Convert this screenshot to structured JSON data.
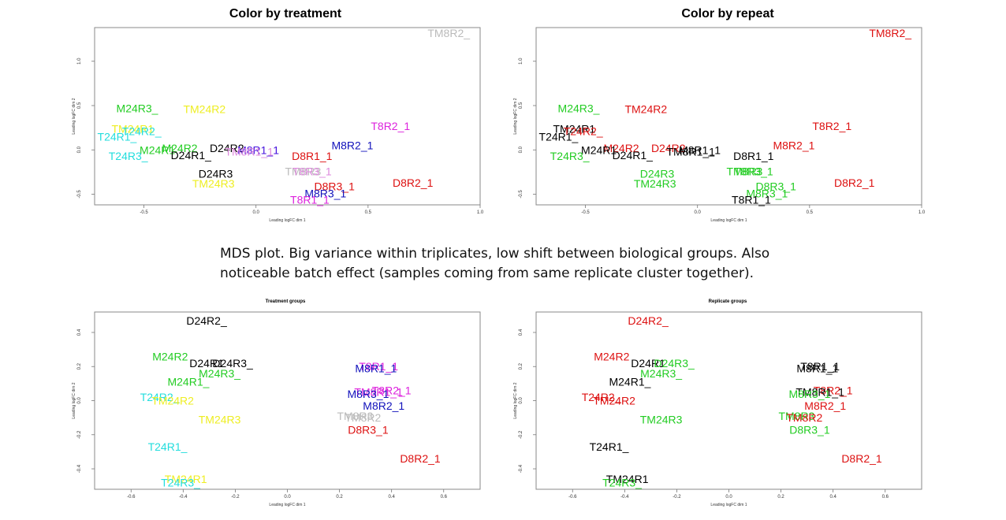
{
  "caption": "MDS plot. Big variance within triplicates, low shift between biological groups. Also noticeable batch effect (samples coming from same replicate cluster together).",
  "colors": {
    "black": "#000000",
    "green": "#22cc22",
    "cyan": "#22dddd",
    "yellow": "#eeee22",
    "gray": "#bbbbbb",
    "red": "#dd1111",
    "magenta": "#dd22dd",
    "blue": "#1111bb",
    "violet": "#4411dd",
    "lightmagenta": "#dd88dd"
  },
  "chart_data": [
    {
      "type": "scatter",
      "title": "Color by treatment",
      "xlabel": "Leading logFC dim 1",
      "ylabel": "Leading logFC dim 2",
      "xlim": [
        -0.72,
        1.0
      ],
      "ylim": [
        -0.62,
        1.38
      ],
      "xticks": [
        "-0.5",
        "0.0",
        "0.5",
        "1.0"
      ],
      "xtick_values": [
        -0.5,
        0.0,
        0.5,
        1.0
      ],
      "yticks": [
        "-0.5",
        "0.0",
        "0.5",
        "1.0"
      ],
      "ytick_values": [
        -0.5,
        0.0,
        0.5,
        1.0
      ],
      "points": [
        {
          "label": "TM8R2_",
          "x": 0.86,
          "y": 1.32,
          "color": "gray"
        },
        {
          "label": "M24R3_",
          "x": -0.53,
          "y": 0.47,
          "color": "green"
        },
        {
          "label": "TM24R2",
          "x": -0.23,
          "y": 0.46,
          "color": "yellow"
        },
        {
          "label": "T8R2_1",
          "x": 0.6,
          "y": 0.27,
          "color": "magenta"
        },
        {
          "label": "TM24R1",
          "x": -0.55,
          "y": 0.24,
          "color": "yellow"
        },
        {
          "label": "T24R2_",
          "x": -0.51,
          "y": 0.21,
          "color": "cyan"
        },
        {
          "label": "T24R1_",
          "x": -0.62,
          "y": 0.15,
          "color": "cyan"
        },
        {
          "label": "M8R2_1",
          "x": 0.43,
          "y": 0.05,
          "color": "blue"
        },
        {
          "label": "D24R2",
          "x": -0.13,
          "y": 0.02,
          "color": "black"
        },
        {
          "label": "M24R2",
          "x": -0.34,
          "y": 0.02,
          "color": "green"
        },
        {
          "label": "M24R1",
          "x": -0.44,
          "y": 0.0,
          "color": "green"
        },
        {
          "label": "M8R1_1",
          "x": 0.01,
          "y": 0.0,
          "color": "violet"
        },
        {
          "label": "TM8R1_1",
          "x": -0.03,
          "y": -0.02,
          "color": "lightmagenta"
        },
        {
          "label": "D8R1_1",
          "x": 0.25,
          "y": -0.07,
          "color": "red"
        },
        {
          "label": "D24R1_",
          "x": -0.29,
          "y": -0.06,
          "color": "black"
        },
        {
          "label": "T24R3_",
          "x": -0.57,
          "y": -0.07,
          "color": "cyan"
        },
        {
          "label": "D24R3",
          "x": -0.18,
          "y": -0.27,
          "color": "black"
        },
        {
          "label": "TM8R3",
          "x": 0.21,
          "y": -0.24,
          "color": "gray"
        },
        {
          "label": "T8R3_1",
          "x": 0.25,
          "y": -0.24,
          "color": "lightmagenta"
        },
        {
          "label": "TM24R3",
          "x": -0.19,
          "y": -0.38,
          "color": "yellow"
        },
        {
          "label": "D8R2_1",
          "x": 0.7,
          "y": -0.37,
          "color": "red"
        },
        {
          "label": "D8R3_1",
          "x": 0.35,
          "y": -0.41,
          "color": "red"
        },
        {
          "label": "M8R3_1",
          "x": 0.31,
          "y": -0.49,
          "color": "blue"
        },
        {
          "label": "T8R1_1",
          "x": 0.24,
          "y": -0.56,
          "color": "magenta"
        }
      ]
    },
    {
      "type": "scatter",
      "title": "Color by repeat",
      "xlabel": "Leading logFC dim 1",
      "ylabel": "Leading logFC dim 2",
      "xlim": [
        -0.72,
        1.0
      ],
      "ylim": [
        -0.62,
        1.38
      ],
      "xticks": [
        "-0.5",
        "0.0",
        "0.5",
        "1.0"
      ],
      "xtick_values": [
        -0.5,
        0.0,
        0.5,
        1.0
      ],
      "yticks": [
        "-0.5",
        "0.0",
        "0.5",
        "1.0"
      ],
      "ytick_values": [
        -0.5,
        0.0,
        0.5,
        1.0
      ],
      "points": [
        {
          "label": "TM8R2_",
          "x": 0.86,
          "y": 1.32,
          "color": "red"
        },
        {
          "label": "M24R3_",
          "x": -0.53,
          "y": 0.47,
          "color": "green"
        },
        {
          "label": "TM24R2",
          "x": -0.23,
          "y": 0.46,
          "color": "red"
        },
        {
          "label": "T8R2_1",
          "x": 0.6,
          "y": 0.27,
          "color": "red"
        },
        {
          "label": "TM24R1",
          "x": -0.55,
          "y": 0.24,
          "color": "black"
        },
        {
          "label": "T24R2_",
          "x": -0.51,
          "y": 0.21,
          "color": "red"
        },
        {
          "label": "T24R1_",
          "x": -0.62,
          "y": 0.15,
          "color": "black"
        },
        {
          "label": "M8R2_1",
          "x": 0.43,
          "y": 0.05,
          "color": "red"
        },
        {
          "label": "D24R2",
          "x": -0.13,
          "y": 0.02,
          "color": "red"
        },
        {
          "label": "M24R2",
          "x": -0.34,
          "y": 0.02,
          "color": "red"
        },
        {
          "label": "M24R1",
          "x": -0.44,
          "y": 0.0,
          "color": "black"
        },
        {
          "label": "M8R1_1",
          "x": 0.01,
          "y": 0.0,
          "color": "black"
        },
        {
          "label": "TM8R1_1",
          "x": -0.03,
          "y": -0.02,
          "color": "black"
        },
        {
          "label": "D8R1_1",
          "x": 0.25,
          "y": -0.07,
          "color": "black"
        },
        {
          "label": "D24R1_",
          "x": -0.29,
          "y": -0.06,
          "color": "black"
        },
        {
          "label": "T24R3_",
          "x": -0.57,
          "y": -0.07,
          "color": "green"
        },
        {
          "label": "D24R3",
          "x": -0.18,
          "y": -0.27,
          "color": "green"
        },
        {
          "label": "TM8R3",
          "x": 0.21,
          "y": -0.24,
          "color": "green"
        },
        {
          "label": "T8R3_1",
          "x": 0.25,
          "y": -0.24,
          "color": "green"
        },
        {
          "label": "TM24R3",
          "x": -0.19,
          "y": -0.38,
          "color": "green"
        },
        {
          "label": "D8R2_1",
          "x": 0.7,
          "y": -0.37,
          "color": "red"
        },
        {
          "label": "D8R3_1",
          "x": 0.35,
          "y": -0.41,
          "color": "green"
        },
        {
          "label": "M8R3_1",
          "x": 0.31,
          "y": -0.49,
          "color": "green"
        },
        {
          "label": "T8R1_1",
          "x": 0.24,
          "y": -0.56,
          "color": "black"
        }
      ]
    },
    {
      "type": "scatter",
      "title": "Treatment groups",
      "xlabel": "Leading logFC dim 1",
      "ylabel": "Leading logFC dim 2",
      "xlim": [
        -0.74,
        0.74
      ],
      "ylim": [
        -0.52,
        0.52
      ],
      "xticks": [
        "-0.6",
        "-0.4",
        "-0.2",
        "0.0",
        "0.2",
        "0.4",
        "0.6"
      ],
      "xtick_values": [
        -0.6,
        -0.4,
        -0.2,
        0.0,
        0.2,
        0.4,
        0.6
      ],
      "yticks": [
        "-0.4",
        "-0.2",
        "0.0",
        "0.2",
        "0.4"
      ],
      "ytick_values": [
        -0.4,
        -0.2,
        0.0,
        0.2,
        0.4
      ],
      "points": [
        {
          "label": "D24R2_",
          "x": -0.31,
          "y": 0.47,
          "color": "black"
        },
        {
          "label": "M24R2",
          "x": -0.45,
          "y": 0.26,
          "color": "green"
        },
        {
          "label": "D24R1",
          "x": -0.31,
          "y": 0.22,
          "color": "black"
        },
        {
          "label": "D24R3_",
          "x": -0.21,
          "y": 0.22,
          "color": "black"
        },
        {
          "label": "M24R3_",
          "x": -0.26,
          "y": 0.16,
          "color": "green"
        },
        {
          "label": "T8R1_1",
          "x": 0.35,
          "y": 0.2,
          "color": "magenta"
        },
        {
          "label": "M8R1_1",
          "x": 0.34,
          "y": 0.19,
          "color": "blue"
        },
        {
          "label": "M24R1_",
          "x": -0.38,
          "y": 0.11,
          "color": "green"
        },
        {
          "label": "T8R2_1",
          "x": 0.4,
          "y": 0.06,
          "color": "magenta"
        },
        {
          "label": "TM8R1_1",
          "x": 0.35,
          "y": 0.05,
          "color": "magenta"
        },
        {
          "label": "M8R3_1",
          "x": 0.31,
          "y": 0.04,
          "color": "blue"
        },
        {
          "label": "T24R2_",
          "x": -0.49,
          "y": 0.02,
          "color": "cyan"
        },
        {
          "label": "TM24R2",
          "x": -0.44,
          "y": 0.0,
          "color": "yellow"
        },
        {
          "label": "M8R2_1",
          "x": 0.37,
          "y": -0.03,
          "color": "blue"
        },
        {
          "label": "TM8R3",
          "x": 0.26,
          "y": -0.09,
          "color": "gray"
        },
        {
          "label": "TM8R2",
          "x": 0.29,
          "y": -0.1,
          "color": "gray"
        },
        {
          "label": "TM24R3",
          "x": -0.26,
          "y": -0.11,
          "color": "yellow"
        },
        {
          "label": "D8R3_1",
          "x": 0.31,
          "y": -0.17,
          "color": "red"
        },
        {
          "label": "T24R1_",
          "x": -0.46,
          "y": -0.27,
          "color": "cyan"
        },
        {
          "label": "D8R2_1",
          "x": 0.51,
          "y": -0.34,
          "color": "red"
        },
        {
          "label": "TM24R1",
          "x": -0.39,
          "y": -0.46,
          "color": "yellow"
        },
        {
          "label": "T24R3_",
          "x": -0.41,
          "y": -0.48,
          "color": "cyan"
        }
      ]
    },
    {
      "type": "scatter",
      "title": "Replicate groups",
      "xlabel": "Leading logFC dim 1",
      "ylabel": "Leading logFC dim 2",
      "xlim": [
        -0.74,
        0.74
      ],
      "ylim": [
        -0.52,
        0.52
      ],
      "xticks": [
        "-0.6",
        "-0.4",
        "-0.2",
        "0.0",
        "0.2",
        "0.4",
        "0.6"
      ],
      "xtick_values": [
        -0.6,
        -0.4,
        -0.2,
        0.0,
        0.2,
        0.4,
        0.6
      ],
      "yticks": [
        "-0.4",
        "-0.2",
        "0.0",
        "0.2",
        "0.4"
      ],
      "ytick_values": [
        -0.4,
        -0.2,
        0.0,
        0.2,
        0.4
      ],
      "points": [
        {
          "label": "D24R2_",
          "x": -0.31,
          "y": 0.47,
          "color": "red"
        },
        {
          "label": "M24R2",
          "x": -0.45,
          "y": 0.26,
          "color": "red"
        },
        {
          "label": "D24R1",
          "x": -0.31,
          "y": 0.22,
          "color": "black"
        },
        {
          "label": "D24R3_",
          "x": -0.21,
          "y": 0.22,
          "color": "green"
        },
        {
          "label": "M24R3_",
          "x": -0.26,
          "y": 0.16,
          "color": "green"
        },
        {
          "label": "T8R1_1",
          "x": 0.35,
          "y": 0.2,
          "color": "black"
        },
        {
          "label": "M8R1_1",
          "x": 0.34,
          "y": 0.19,
          "color": "black"
        },
        {
          "label": "M24R1_",
          "x": -0.38,
          "y": 0.11,
          "color": "black"
        },
        {
          "label": "T8R2_1",
          "x": 0.4,
          "y": 0.06,
          "color": "red"
        },
        {
          "label": "TM8R1_1",
          "x": 0.35,
          "y": 0.05,
          "color": "black"
        },
        {
          "label": "M8R3_1",
          "x": 0.31,
          "y": 0.04,
          "color": "green"
        },
        {
          "label": "T24R2_",
          "x": -0.49,
          "y": 0.02,
          "color": "red"
        },
        {
          "label": "TM24R2",
          "x": -0.44,
          "y": 0.0,
          "color": "red"
        },
        {
          "label": "M8R2_1",
          "x": 0.37,
          "y": -0.03,
          "color": "red"
        },
        {
          "label": "TM8R3",
          "x": 0.26,
          "y": -0.09,
          "color": "green"
        },
        {
          "label": "TM8R2",
          "x": 0.29,
          "y": -0.1,
          "color": "red"
        },
        {
          "label": "TM24R3",
          "x": -0.26,
          "y": -0.11,
          "color": "green"
        },
        {
          "label": "D8R3_1",
          "x": 0.31,
          "y": -0.17,
          "color": "green"
        },
        {
          "label": "T24R1_",
          "x": -0.46,
          "y": -0.27,
          "color": "black"
        },
        {
          "label": "D8R2_1",
          "x": 0.51,
          "y": -0.34,
          "color": "red"
        },
        {
          "label": "TM24R1",
          "x": -0.39,
          "y": -0.46,
          "color": "black"
        },
        {
          "label": "T24R3_",
          "x": -0.41,
          "y": -0.48,
          "color": "green"
        }
      ]
    }
  ]
}
